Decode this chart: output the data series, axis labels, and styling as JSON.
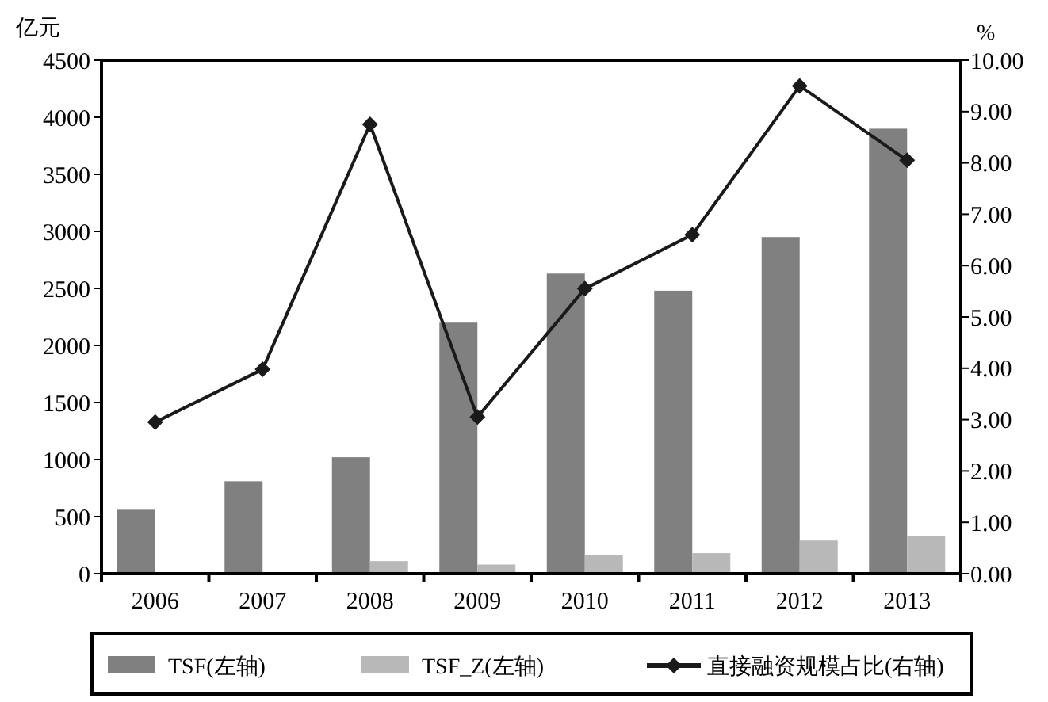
{
  "chart_data": {
    "type": "bar",
    "ylabel": "亿元",
    "y2label": "%",
    "categories": [
      "2006",
      "2007",
      "2008",
      "2009",
      "2010",
      "2011",
      "2012",
      "2013"
    ],
    "series": [
      {
        "name": "TSF(左轴)",
        "color": "#808080",
        "values": [
          560,
          810,
          1020,
          2200,
          2630,
          2480,
          2950,
          3900
        ]
      },
      {
        "name": "TSF_Z(左轴)",
        "color": "#b8b8b8",
        "values": [
          null,
          null,
          110,
          80,
          160,
          180,
          290,
          330
        ]
      },
      {
        "name": "直接融资规模占比(右轴)",
        "type": "line",
        "axis": "y2",
        "color": "#1a1a1a",
        "marker": "diamond",
        "values": [
          2.95,
          3.98,
          8.75,
          3.05,
          5.55,
          6.6,
          9.5,
          8.05
        ]
      }
    ],
    "ylim": [
      0,
      4500
    ],
    "yticks": [
      0,
      500,
      1000,
      1500,
      2000,
      2500,
      3000,
      3500,
      4000,
      4500
    ],
    "y2lim": [
      0,
      10
    ],
    "y2ticks": [
      {
        "value": 0,
        "label": "0.00"
      },
      {
        "value": 1,
        "label": "1.00"
      },
      {
        "value": 2,
        "label": "2.00"
      },
      {
        "value": 3,
        "label": "3.00"
      },
      {
        "value": 4,
        "label": "4.00"
      },
      {
        "value": 5,
        "label": "5.00"
      },
      {
        "value": 6,
        "label": "6.00"
      },
      {
        "value": 7,
        "label": "7.00"
      },
      {
        "value": 8,
        "label": "8.00"
      },
      {
        "value": 9,
        "label": "9.00"
      },
      {
        "value": 10,
        "label": "10.00"
      }
    ],
    "legend": "bottom"
  }
}
